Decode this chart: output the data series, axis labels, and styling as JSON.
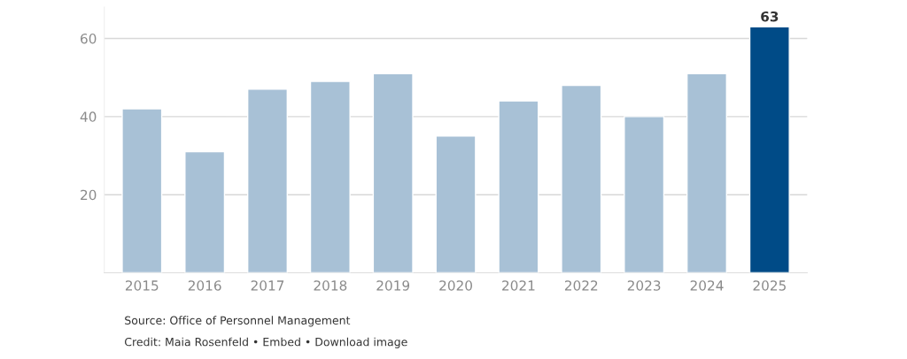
{
  "chart_data": {
    "type": "bar",
    "categories": [
      "2015",
      "2016",
      "2017",
      "2018",
      "2019",
      "2020",
      "2021",
      "2022",
      "2023",
      "2024",
      "2025"
    ],
    "values": [
      42,
      31,
      47,
      49,
      51,
      35,
      44,
      48,
      40,
      51,
      63
    ],
    "colors": [
      "#a8c1d6",
      "#a8c1d6",
      "#a8c1d6",
      "#a8c1d6",
      "#a8c1d6",
      "#a8c1d6",
      "#a8c1d6",
      "#a8c1d6",
      "#a8c1d6",
      "#a8c1d6",
      "#004b87"
    ],
    "value_labels": [
      null,
      null,
      null,
      null,
      null,
      null,
      null,
      null,
      null,
      null,
      "63"
    ],
    "ylim": [
      0,
      68
    ],
    "yticks": [
      20,
      40,
      60
    ],
    "grid": "y",
    "annotations": [
      "Source: Office of Personnel Management",
      "Credit: Maia Rosenfeld • Embed • Download image"
    ]
  }
}
